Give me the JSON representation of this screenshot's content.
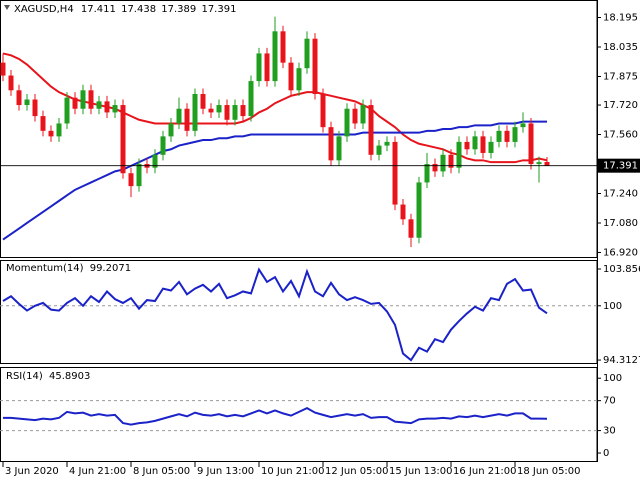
{
  "chart_data": [
    {
      "type": "candlestick",
      "title": "XAGUSD,H4",
      "categories": [
        "3 Jun 2020",
        null,
        null,
        null,
        null,
        null,
        null,
        null,
        "4 Jun 21:00",
        null,
        null,
        null,
        null,
        null,
        null,
        null,
        "8 Jun 05:00",
        null,
        null,
        null,
        null,
        null,
        null,
        null,
        "9 Jun 13:00",
        null,
        null,
        null,
        null,
        null,
        null,
        null,
        "10 Jun 21:00",
        null,
        null,
        null,
        null,
        null,
        null,
        null,
        "12 Jun 05:00",
        null,
        null,
        null,
        null,
        null,
        null,
        null,
        "15 Jun 13:00",
        null,
        null,
        null,
        null,
        null,
        null,
        null,
        "16 Jun 21:00",
        null,
        null,
        null,
        null,
        null,
        null,
        null,
        "18 Jun 05:00",
        null,
        null,
        null,
        null
      ],
      "open": [
        17.95,
        17.88,
        17.8,
        17.72,
        17.75,
        17.66,
        17.58,
        17.55,
        17.62,
        17.76,
        17.7,
        17.8,
        17.7,
        17.74,
        17.68,
        17.72,
        17.35,
        17.28,
        17.4,
        17.38,
        17.45,
        17.55,
        17.62,
        17.7,
        17.58,
        17.78,
        17.7,
        17.68,
        17.72,
        17.64,
        17.72,
        17.66,
        17.85,
        18.0,
        17.85,
        18.12,
        17.95,
        17.8,
        17.92,
        18.08,
        17.78,
        17.6,
        17.42,
        17.55,
        17.7,
        17.62,
        17.72,
        17.45,
        17.5,
        17.52,
        17.18,
        17.1,
        17.0,
        17.3,
        17.4,
        17.36,
        17.45,
        17.38,
        17.52,
        17.48,
        17.55,
        17.46,
        17.52,
        17.58,
        17.52,
        17.6,
        17.62,
        17.4,
        17.411
      ],
      "high": [
        18.0,
        17.91,
        17.83,
        17.78,
        17.78,
        17.69,
        17.61,
        17.65,
        17.79,
        17.79,
        17.83,
        17.83,
        17.77,
        17.77,
        17.75,
        17.75,
        17.38,
        17.43,
        17.43,
        17.48,
        17.58,
        17.65,
        17.76,
        17.73,
        17.81,
        17.81,
        17.73,
        17.75,
        17.75,
        17.75,
        17.75,
        17.88,
        18.03,
        18.03,
        18.2,
        18.15,
        17.98,
        17.95,
        18.12,
        18.11,
        17.81,
        17.63,
        17.58,
        17.73,
        17.73,
        17.75,
        17.75,
        17.53,
        17.55,
        17.55,
        17.21,
        17.13,
        17.33,
        17.46,
        17.43,
        17.48,
        17.48,
        17.55,
        17.55,
        17.58,
        17.58,
        17.55,
        17.61,
        17.61,
        17.63,
        17.68,
        17.65,
        17.44,
        17.438
      ],
      "low": [
        17.85,
        17.77,
        17.69,
        17.69,
        17.63,
        17.55,
        17.52,
        17.52,
        17.59,
        17.67,
        17.67,
        17.67,
        17.67,
        17.65,
        17.65,
        17.32,
        17.22,
        17.25,
        17.35,
        17.35,
        17.42,
        17.52,
        17.59,
        17.55,
        17.55,
        17.67,
        17.65,
        17.65,
        17.61,
        17.61,
        17.63,
        17.63,
        17.82,
        17.82,
        17.82,
        17.92,
        17.77,
        17.77,
        17.89,
        17.75,
        17.57,
        17.39,
        17.39,
        17.52,
        17.59,
        17.59,
        17.42,
        17.42,
        17.47,
        17.15,
        17.07,
        16.95,
        16.97,
        17.27,
        17.33,
        17.33,
        17.35,
        17.35,
        17.45,
        17.45,
        17.43,
        17.43,
        17.49,
        17.49,
        17.49,
        17.57,
        17.37,
        17.3,
        17.389
      ],
      "close": [
        17.88,
        17.8,
        17.72,
        17.75,
        17.66,
        17.58,
        17.55,
        17.62,
        17.76,
        17.7,
        17.8,
        17.7,
        17.74,
        17.68,
        17.72,
        17.35,
        17.28,
        17.4,
        17.38,
        17.45,
        17.55,
        17.62,
        17.7,
        17.58,
        17.78,
        17.7,
        17.68,
        17.72,
        17.64,
        17.72,
        17.66,
        17.85,
        18.0,
        17.85,
        18.12,
        17.95,
        17.8,
        17.92,
        18.08,
        17.78,
        17.6,
        17.42,
        17.55,
        17.7,
        17.62,
        17.72,
        17.45,
        17.5,
        17.52,
        17.18,
        17.1,
        17.0,
        17.3,
        17.4,
        17.36,
        17.45,
        17.38,
        17.52,
        17.48,
        17.55,
        17.46,
        17.52,
        17.58,
        17.52,
        17.6,
        17.62,
        17.4,
        17.41,
        17.391
      ],
      "up_color": "#1f9e1f",
      "down_color": "#e8141c",
      "lines": [
        {
          "color": "#e8141c",
          "values": [
            18.0,
            17.99,
            17.97,
            17.94,
            17.9,
            17.86,
            17.82,
            17.79,
            17.77,
            17.75,
            17.74,
            17.73,
            17.72,
            17.71,
            17.7,
            17.68,
            17.66,
            17.64,
            17.63,
            17.62,
            17.62,
            17.62,
            17.62,
            17.62,
            17.62,
            17.62,
            17.62,
            17.62,
            17.62,
            17.62,
            17.63,
            17.65,
            17.68,
            17.7,
            17.73,
            17.75,
            17.77,
            17.78,
            17.79,
            17.79,
            17.78,
            17.77,
            17.76,
            17.75,
            17.74,
            17.72,
            17.7,
            17.66,
            17.63,
            17.6,
            17.56,
            17.53,
            17.51,
            17.5,
            17.49,
            17.48,
            17.46,
            17.45,
            17.43,
            17.42,
            17.42,
            17.41,
            17.41,
            17.41,
            17.41,
            17.42,
            17.42,
            17.43,
            17.42
          ]
        },
        {
          "color": "#1a22c8",
          "values": [
            16.99,
            17.02,
            17.05,
            17.08,
            17.11,
            17.14,
            17.17,
            17.2,
            17.23,
            17.26,
            17.28,
            17.3,
            17.32,
            17.34,
            17.36,
            17.37,
            17.39,
            17.41,
            17.43,
            17.45,
            17.47,
            17.48,
            17.5,
            17.51,
            17.52,
            17.53,
            17.53,
            17.54,
            17.54,
            17.55,
            17.55,
            17.56,
            17.56,
            17.56,
            17.56,
            17.56,
            17.56,
            17.56,
            17.56,
            17.56,
            17.56,
            17.56,
            17.56,
            17.56,
            17.56,
            17.57,
            17.57,
            17.57,
            17.57,
            17.57,
            17.57,
            17.57,
            17.57,
            17.58,
            17.58,
            17.59,
            17.59,
            17.6,
            17.6,
            17.61,
            17.61,
            17.61,
            17.62,
            17.62,
            17.62,
            17.63,
            17.63,
            17.63,
            17.63
          ]
        }
      ],
      "ylim": [
        16.89,
        18.29
      ],
      "yticks": [
        18.195,
        18.035,
        17.875,
        {
          "value": 17.72,
          "label": "17.720"
        },
        {
          "value": 17.56,
          "label": "17.560"
        },
        {
          "value": 17.24,
          "label": "17.240"
        },
        {
          "value": 17.08,
          "label": "17.080"
        },
        {
          "value": 16.92,
          "label": "16.920"
        }
      ]
    },
    {
      "type": "line",
      "title": "Momentum(14)",
      "color": "#1a22c8",
      "values": [
        100.5,
        101,
        100.2,
        99.5,
        100,
        100.3,
        99.6,
        99.5,
        100.3,
        100.8,
        100,
        101,
        100.4,
        101.5,
        100.7,
        100.3,
        100.8,
        99.7,
        100.6,
        100.5,
        101.8,
        101.6,
        102.5,
        101.2,
        101.8,
        102.2,
        101.5,
        102.3,
        100.8,
        101.1,
        101.5,
        101.3,
        103.8,
        102.5,
        103,
        101.5,
        102.6,
        101,
        103.6,
        101.5,
        101,
        102.4,
        101.2,
        100.6,
        100.9,
        100.6,
        100.2,
        100.3,
        99.4,
        98,
        95,
        94.3,
        95.6,
        95.2,
        96.5,
        96.2,
        97.5,
        98.4,
        99.2,
        99.9,
        99.5,
        100.8,
        100.6,
        102.3,
        102.8,
        101.6,
        101.7,
        99.8,
        99.2071
      ],
      "ylim": [
        93.9,
        104.8
      ],
      "yticks": [
        103.8561,
        100,
        94.3127
      ],
      "levels": [
        100
      ]
    },
    {
      "type": "line",
      "title": "RSI(14)",
      "color": "#1a22c8",
      "values": [
        47,
        47,
        46,
        45,
        44,
        46,
        45,
        47,
        55,
        53,
        54,
        50,
        52,
        50,
        51,
        40,
        38,
        40,
        41,
        43,
        46,
        49,
        52,
        49,
        54,
        51,
        50,
        52,
        49,
        51,
        49,
        53,
        57,
        53,
        57,
        53,
        50,
        55,
        60,
        54,
        51,
        48,
        50,
        52,
        50,
        52,
        47,
        48,
        48,
        42,
        41,
        40,
        45,
        46,
        46,
        47,
        46,
        49,
        48,
        50,
        48,
        50,
        52,
        50,
        53,
        53,
        46,
        46,
        45.8903
      ],
      "ylim": [
        -12,
        115
      ],
      "yticks": [
        100,
        70,
        30,
        0
      ],
      "levels": [
        70,
        30
      ]
    }
  ]
}
